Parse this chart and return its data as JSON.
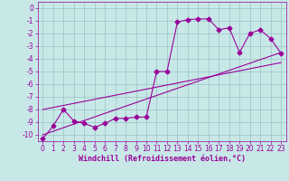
{
  "title": "",
  "xlabel": "Windchill (Refroidissement éolien,°C)",
  "bg_color": "#c8e8e8",
  "grid_color": "#a0c8c8",
  "line_color": "#990099",
  "xlim": [
    -0.5,
    23.5
  ],
  "ylim": [
    -10.5,
    0.5
  ],
  "xticks": [
    0,
    1,
    2,
    3,
    4,
    5,
    6,
    7,
    8,
    9,
    10,
    11,
    12,
    13,
    14,
    15,
    16,
    17,
    18,
    19,
    20,
    21,
    22,
    23
  ],
  "yticks": [
    0,
    -1,
    -2,
    -3,
    -4,
    -5,
    -6,
    -7,
    -8,
    -9,
    -10
  ],
  "line1_x": [
    0,
    1,
    2,
    3,
    4,
    5,
    6,
    7,
    8,
    9,
    10,
    11,
    12,
    13,
    14,
    15,
    16,
    17,
    18,
    19,
    20,
    21,
    22,
    23
  ],
  "line1_y": [
    -10.3,
    -9.3,
    -8.0,
    -8.9,
    -9.1,
    -9.4,
    -9.1,
    -8.7,
    -8.7,
    -8.6,
    -8.6,
    -5.0,
    -5.0,
    -1.1,
    -0.9,
    -0.85,
    -0.85,
    -1.7,
    -1.55,
    -3.5,
    -2.0,
    -1.7,
    -2.4,
    -3.55
  ],
  "line2_x": [
    0,
    23
  ],
  "line2_y": [
    -10.0,
    -3.5
  ],
  "line3_x": [
    0,
    23
  ],
  "line3_y": [
    -8.0,
    -4.3
  ],
  "markersize": 2.5,
  "linewidth": 0.8,
  "tick_fontsize": 5.5,
  "xlabel_fontsize": 6.0
}
